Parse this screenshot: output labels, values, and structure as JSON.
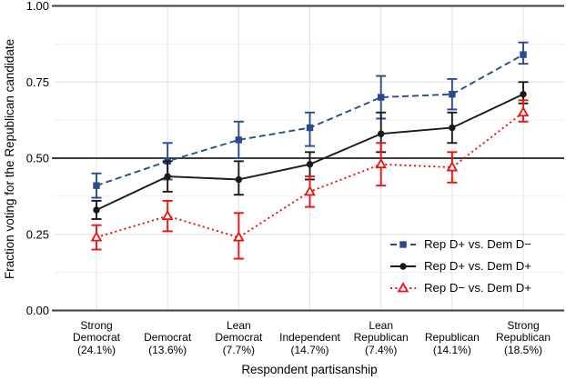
{
  "chart_data": {
    "type": "line",
    "title": "",
    "xlabel": "Respondent partisanship",
    "ylabel": "Fraction voting for the Republican candidate",
    "ylim": [
      0,
      1
    ],
    "grid": "on",
    "legend_position": "inside bottom-right",
    "y_ticks": [
      0,
      0.25,
      0.5,
      0.75,
      1
    ],
    "y_tick_labels": [
      "0.00",
      "0.25",
      "0.50",
      "0.75",
      "1.00"
    ],
    "y_minor_gridlines": [
      0.125,
      0.375,
      0.625,
      0.875
    ],
    "y_major_gridlines": [
      0.25,
      0.75
    ],
    "reference_lines": [
      0,
      0.5,
      1
    ],
    "categories": [
      "Strong\nDemocrat\n(24.1%)",
      "Democrat\n(13.6%)",
      "Lean\nDemocrat\n(7.7%)",
      "Independent\n(14.7%)",
      "Lean\nRepublican\n(7.4%)",
      "Republican\n(14.1%)",
      "Strong\nRepublican\n(18.5%)"
    ],
    "series": [
      {
        "name": "Rep D+ vs. Dem D−",
        "color": "#2b4a8c",
        "marker": "filled-square",
        "line_style": "dashed",
        "values": [
          0.41,
          0.49,
          0.56,
          0.6,
          0.7,
          0.71,
          0.84
        ],
        "err_low": [
          0.37,
          0.43,
          0.5,
          0.54,
          0.63,
          0.66,
          0.81
        ],
        "err_high": [
          0.45,
          0.55,
          0.62,
          0.65,
          0.77,
          0.76,
          0.88
        ]
      },
      {
        "name": "Rep D+ vs. Dem D+",
        "color": "#1a1a1a",
        "marker": "filled-circle",
        "line_style": "solid",
        "values": [
          0.33,
          0.44,
          0.43,
          0.48,
          0.58,
          0.6,
          0.71
        ],
        "err_low": [
          0.3,
          0.39,
          0.38,
          0.43,
          0.52,
          0.55,
          0.68
        ],
        "err_high": [
          0.36,
          0.49,
          0.49,
          0.52,
          0.65,
          0.65,
          0.75
        ]
      },
      {
        "name": "Rep D− vs. Dem D+",
        "color": "#ee1111",
        "marker": "open-triangle",
        "line_style": "dotted",
        "values": [
          0.24,
          0.31,
          0.24,
          0.39,
          0.48,
          0.47,
          0.65
        ],
        "err_low": [
          0.2,
          0.26,
          0.17,
          0.34,
          0.41,
          0.42,
          0.62
        ],
        "err_high": [
          0.28,
          0.36,
          0.32,
          0.44,
          0.55,
          0.52,
          0.69
        ]
      }
    ],
    "style": {
      "reference_line_color": "#3c3c3c",
      "major_grid_color": "#e2e2e2",
      "minor_grid_color": "#efefef",
      "vertical_grid_color": "#e4e4e4",
      "background": "#ffffff"
    }
  }
}
